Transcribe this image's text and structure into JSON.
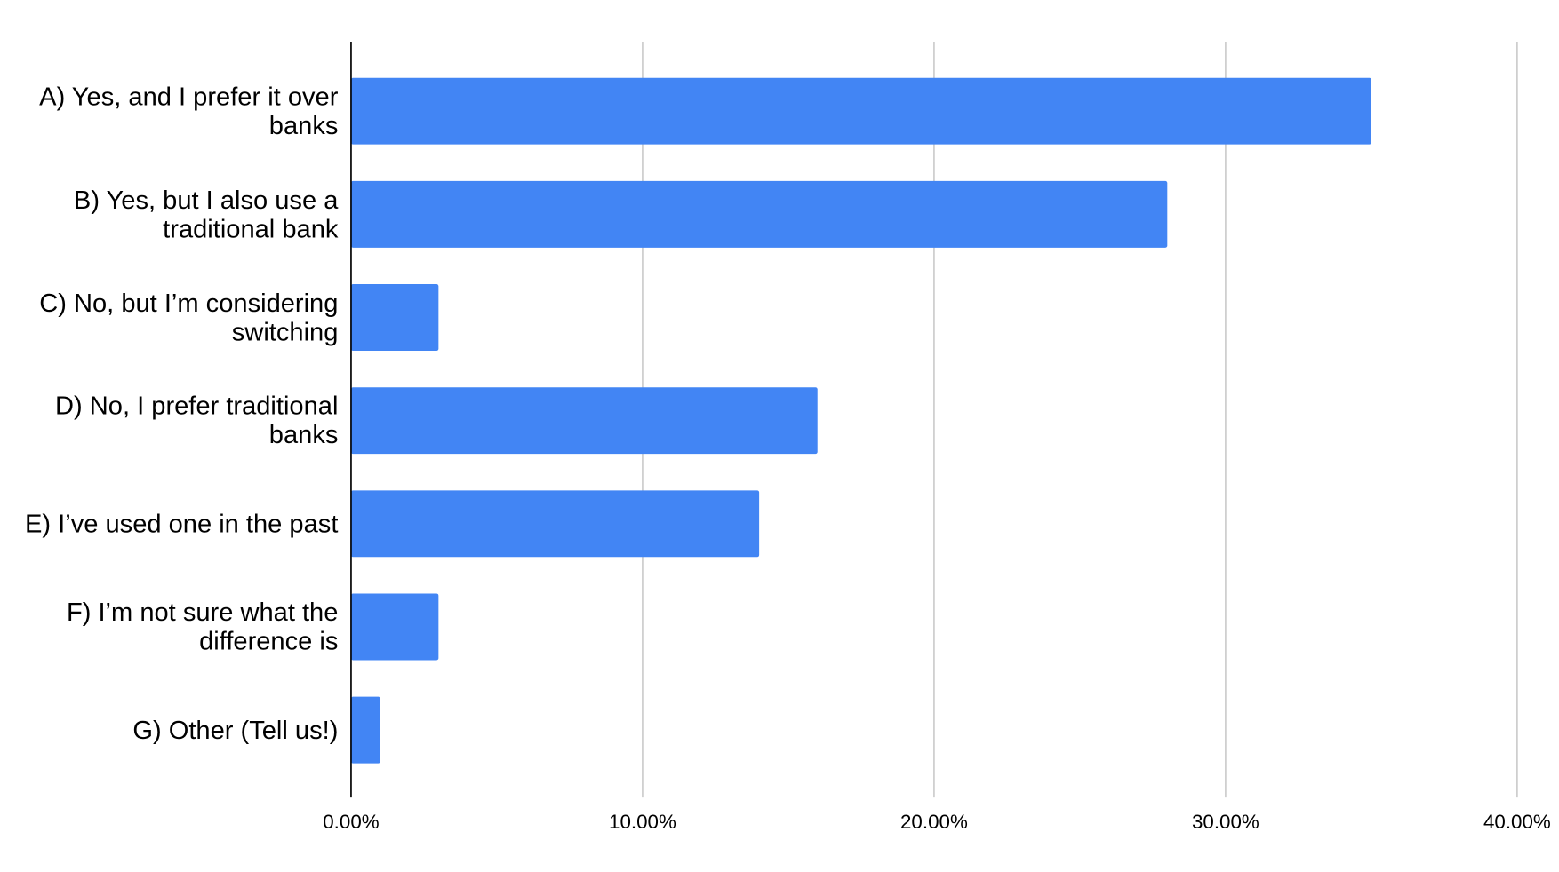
{
  "chart_data": {
    "type": "bar",
    "orientation": "horizontal",
    "categories": [
      "A) Yes, and I prefer it over banks",
      "B) Yes, but I also use a traditional bank",
      "C) No, but I’m considering switching",
      "D) No, I prefer traditional banks",
      "E) I’ve used one in the past",
      "F) I’m not sure what the difference is",
      "G) Other (Tell us!)"
    ],
    "values": [
      35,
      28,
      3,
      16,
      14,
      3,
      1
    ],
    "color": "#4285f4",
    "xlim": [
      0,
      40
    ],
    "xticks": [
      {
        "value": 0,
        "label": "0.00%"
      },
      {
        "value": 10,
        "label": "10.00%"
      },
      {
        "value": 20,
        "label": "20.00%"
      },
      {
        "value": 30,
        "label": "30.00%"
      },
      {
        "value": 40,
        "label": "40.00%"
      }
    ],
    "grid": true
  }
}
